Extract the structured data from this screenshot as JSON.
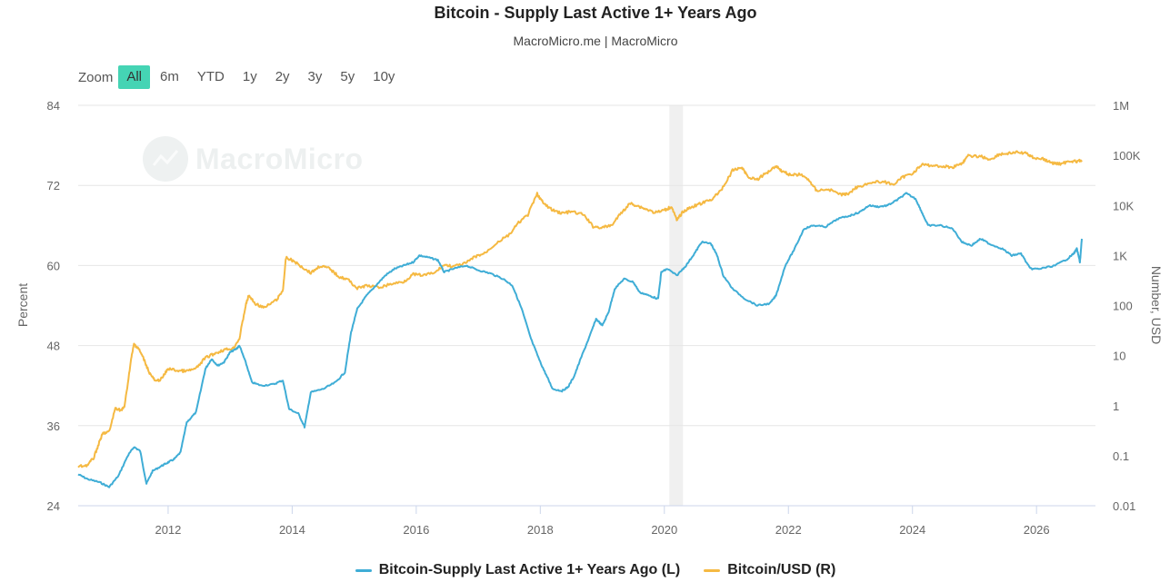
{
  "header": {
    "title": "Bitcoin - Supply Last Active 1+ Years Ago",
    "subtitle": "MacroMicro.me | MacroMicro"
  },
  "zoom": {
    "label": "Zoom",
    "buttons": [
      "All",
      "6m",
      "YTD",
      "1y",
      "2y",
      "3y",
      "5y",
      "10y"
    ],
    "active": "All"
  },
  "watermark": {
    "text": "MacroMicro"
  },
  "colors": {
    "supply": "#3fadd6",
    "price": "#f5b942",
    "shade": "#f0f0f0",
    "grid": "#e6e6e6"
  },
  "chart_data": {
    "type": "line",
    "title": "Bitcoin - Supply Last Active 1+ Years Ago",
    "subtitle": "MacroMicro.me | MacroMicro",
    "ylabel_left": "Percent",
    "ylabel_right": "Number, USD",
    "x_range": [
      2010.55,
      2026.95
    ],
    "x_ticks": [
      "2012",
      "2014",
      "2016",
      "2018",
      "2020",
      "2022",
      "2024",
      "2026"
    ],
    "y_left": {
      "range": [
        24,
        84
      ],
      "ticks": [
        "24",
        "36",
        "48",
        "60",
        "72",
        "84"
      ]
    },
    "y_right": {
      "scale": "log",
      "range": [
        0.01,
        1000000
      ],
      "ticks": [
        "0.01",
        "0.1",
        "1",
        "10",
        "100",
        "1K",
        "10K",
        "100K",
        "1M"
      ]
    },
    "shaded_ranges": [
      [
        2020.08,
        2020.3
      ]
    ],
    "grid": true,
    "legend_position": "bottom-center",
    "series": [
      {
        "name": "Bitcoin-Supply Last Active 1+ Years Ago (L)",
        "axis": "left",
        "points": [
          [
            2010.55,
            28.7
          ],
          [
            2010.7,
            28.0
          ],
          [
            2010.9,
            27.5
          ],
          [
            2011.05,
            26.8
          ],
          [
            2011.2,
            28.5
          ],
          [
            2011.35,
            31.5
          ],
          [
            2011.45,
            32.8
          ],
          [
            2011.55,
            32.2
          ],
          [
            2011.65,
            27.3
          ],
          [
            2011.75,
            29.2
          ],
          [
            2011.9,
            30.0
          ],
          [
            2012.0,
            30.5
          ],
          [
            2012.1,
            31.0
          ],
          [
            2012.2,
            32.0
          ],
          [
            2012.3,
            36.5
          ],
          [
            2012.45,
            38.0
          ],
          [
            2012.6,
            44.5
          ],
          [
            2012.7,
            46.0
          ],
          [
            2012.8,
            45.0
          ],
          [
            2012.9,
            45.5
          ],
          [
            2013.0,
            47.0
          ],
          [
            2013.1,
            47.5
          ],
          [
            2013.15,
            48.0
          ],
          [
            2013.25,
            45.5
          ],
          [
            2013.35,
            42.5
          ],
          [
            2013.5,
            42.0
          ],
          [
            2013.7,
            42.2
          ],
          [
            2013.85,
            42.8
          ],
          [
            2013.95,
            38.5
          ],
          [
            2014.1,
            37.8
          ],
          [
            2014.2,
            35.8
          ],
          [
            2014.3,
            41.0
          ],
          [
            2014.5,
            41.5
          ],
          [
            2014.7,
            42.5
          ],
          [
            2014.85,
            44.0
          ],
          [
            2014.95,
            50.0
          ],
          [
            2015.05,
            53.5
          ],
          [
            2015.2,
            55.5
          ],
          [
            2015.35,
            57.0
          ],
          [
            2015.5,
            58.5
          ],
          [
            2015.65,
            59.5
          ],
          [
            2015.8,
            60.0
          ],
          [
            2015.95,
            60.5
          ],
          [
            2016.05,
            61.5
          ],
          [
            2016.2,
            61.2
          ],
          [
            2016.35,
            60.8
          ],
          [
            2016.45,
            59.0
          ],
          [
            2016.6,
            59.5
          ],
          [
            2016.8,
            60.0
          ],
          [
            2017.0,
            59.3
          ],
          [
            2017.2,
            58.8
          ],
          [
            2017.4,
            58.0
          ],
          [
            2017.55,
            57.0
          ],
          [
            2017.7,
            53.5
          ],
          [
            2017.85,
            49.0
          ],
          [
            2018.0,
            45.5
          ],
          [
            2018.1,
            43.5
          ],
          [
            2018.2,
            41.5
          ],
          [
            2018.35,
            41.2
          ],
          [
            2018.45,
            41.8
          ],
          [
            2018.55,
            43.5
          ],
          [
            2018.65,
            46.0
          ],
          [
            2018.8,
            49.5
          ],
          [
            2018.9,
            52.0
          ],
          [
            2019.0,
            51.0
          ],
          [
            2019.1,
            53.0
          ],
          [
            2019.2,
            56.5
          ],
          [
            2019.35,
            58.0
          ],
          [
            2019.5,
            57.5
          ],
          [
            2019.6,
            56.0
          ],
          [
            2019.75,
            55.5
          ],
          [
            2019.9,
            55.0
          ],
          [
            2019.95,
            59.0
          ],
          [
            2020.05,
            59.5
          ],
          [
            2020.2,
            58.5
          ],
          [
            2020.35,
            60.0
          ],
          [
            2020.5,
            62.0
          ],
          [
            2020.6,
            63.5
          ],
          [
            2020.75,
            63.3
          ],
          [
            2020.85,
            61.5
          ],
          [
            2020.95,
            58.5
          ],
          [
            2021.1,
            56.5
          ],
          [
            2021.3,
            55.0
          ],
          [
            2021.5,
            54.0
          ],
          [
            2021.7,
            54.3
          ],
          [
            2021.8,
            55.5
          ],
          [
            2021.95,
            60.0
          ],
          [
            2022.1,
            62.5
          ],
          [
            2022.25,
            65.5
          ],
          [
            2022.4,
            66.0
          ],
          [
            2022.6,
            65.8
          ],
          [
            2022.8,
            67.0
          ],
          [
            2023.0,
            67.5
          ],
          [
            2023.15,
            68.0
          ],
          [
            2023.3,
            69.0
          ],
          [
            2023.45,
            68.8
          ],
          [
            2023.6,
            69.0
          ],
          [
            2023.75,
            69.8
          ],
          [
            2023.9,
            70.8
          ],
          [
            2024.05,
            70.0
          ],
          [
            2024.15,
            68.0
          ],
          [
            2024.25,
            66.0
          ],
          [
            2024.45,
            66.0
          ],
          [
            2024.65,
            65.5
          ],
          [
            2024.8,
            63.5
          ],
          [
            2024.95,
            63.0
          ],
          [
            2025.1,
            64.0
          ],
          [
            2025.25,
            63.2
          ],
          [
            2025.45,
            62.5
          ],
          [
            2025.6,
            61.5
          ],
          [
            2025.75,
            61.8
          ],
          [
            2025.9,
            59.5
          ],
          [
            2026.05,
            59.5
          ],
          [
            2026.3,
            60.0
          ],
          [
            2026.5,
            61.0
          ],
          [
            2026.6,
            61.8
          ],
          [
            2026.65,
            62.5
          ],
          [
            2026.7,
            60.5
          ],
          [
            2026.73,
            64.0
          ]
        ]
      },
      {
        "name": "Bitcoin/USD (R)",
        "axis": "right",
        "points": [
          [
            2010.55,
            0.06
          ],
          [
            2010.7,
            0.065
          ],
          [
            2010.8,
            0.09
          ],
          [
            2010.9,
            0.2
          ],
          [
            2010.95,
            0.28
          ],
          [
            2011.05,
            0.3
          ],
          [
            2011.15,
            0.9
          ],
          [
            2011.25,
            0.8
          ],
          [
            2011.3,
            1.0
          ],
          [
            2011.4,
            8.0
          ],
          [
            2011.45,
            17.0
          ],
          [
            2011.52,
            14.0
          ],
          [
            2011.6,
            9.0
          ],
          [
            2011.7,
            4.5
          ],
          [
            2011.8,
            3.0
          ],
          [
            2011.9,
            3.5
          ],
          [
            2012.0,
            5.5
          ],
          [
            2012.15,
            5.0
          ],
          [
            2012.3,
            4.9
          ],
          [
            2012.45,
            5.5
          ],
          [
            2012.6,
            9.0
          ],
          [
            2012.75,
            11.0
          ],
          [
            2012.9,
            13.0
          ],
          [
            2013.05,
            14.0
          ],
          [
            2013.15,
            22.0
          ],
          [
            2013.25,
            100.0
          ],
          [
            2013.3,
            160.0
          ],
          [
            2013.4,
            110.0
          ],
          [
            2013.55,
            90.0
          ],
          [
            2013.75,
            130.0
          ],
          [
            2013.85,
            200.0
          ],
          [
            2013.9,
            900.0
          ],
          [
            2014.0,
            800.0
          ],
          [
            2014.15,
            600.0
          ],
          [
            2014.3,
            450.0
          ],
          [
            2014.45,
            620.0
          ],
          [
            2014.6,
            550.0
          ],
          [
            2014.75,
            380.0
          ],
          [
            2014.9,
            330.0
          ],
          [
            2015.05,
            220.0
          ],
          [
            2015.2,
            250.0
          ],
          [
            2015.4,
            230.0
          ],
          [
            2015.6,
            270.0
          ],
          [
            2015.8,
            300.0
          ],
          [
            2015.95,
            420.0
          ],
          [
            2016.1,
            400.0
          ],
          [
            2016.3,
            450.0
          ],
          [
            2016.45,
            650.0
          ],
          [
            2016.6,
            600.0
          ],
          [
            2016.8,
            700.0
          ],
          [
            2016.95,
            950.0
          ],
          [
            2017.1,
            1100.0
          ],
          [
            2017.3,
            1800.0
          ],
          [
            2017.5,
            2600.0
          ],
          [
            2017.65,
            4500.0
          ],
          [
            2017.8,
            6500.0
          ],
          [
            2017.95,
            17000.0
          ],
          [
            2018.05,
            11000.0
          ],
          [
            2018.2,
            8000.0
          ],
          [
            2018.35,
            7000.0
          ],
          [
            2018.5,
            7500.0
          ],
          [
            2018.7,
            6500.0
          ],
          [
            2018.85,
            3800.0
          ],
          [
            2019.0,
            3600.0
          ],
          [
            2019.15,
            4000.0
          ],
          [
            2019.3,
            7000.0
          ],
          [
            2019.45,
            11000.0
          ],
          [
            2019.55,
            10000.0
          ],
          [
            2019.7,
            8500.0
          ],
          [
            2019.85,
            7200.0
          ],
          [
            2020.0,
            8000.0
          ],
          [
            2020.12,
            9500.0
          ],
          [
            2020.2,
            5000.0
          ],
          [
            2020.3,
            7500.0
          ],
          [
            2020.45,
            9500.0
          ],
          [
            2020.6,
            11000.0
          ],
          [
            2020.75,
            13000.0
          ],
          [
            2020.9,
            19000.0
          ],
          [
            2021.0,
            30000.0
          ],
          [
            2021.1,
            50000.0
          ],
          [
            2021.25,
            58000.0
          ],
          [
            2021.35,
            37000.0
          ],
          [
            2021.5,
            33000.0
          ],
          [
            2021.65,
            45000.0
          ],
          [
            2021.8,
            62000.0
          ],
          [
            2021.9,
            48000.0
          ],
          [
            2022.05,
            40000.0
          ],
          [
            2022.2,
            42000.0
          ],
          [
            2022.35,
            30000.0
          ],
          [
            2022.45,
            20000.0
          ],
          [
            2022.65,
            21000.0
          ],
          [
            2022.85,
            16500.0
          ],
          [
            2022.95,
            16800.0
          ],
          [
            2023.1,
            23000.0
          ],
          [
            2023.3,
            28000.0
          ],
          [
            2023.5,
            30000.0
          ],
          [
            2023.7,
            26500.0
          ],
          [
            2023.85,
            37000.0
          ],
          [
            2024.0,
            44000.0
          ],
          [
            2024.15,
            65000.0
          ],
          [
            2024.3,
            63000.0
          ],
          [
            2024.5,
            60000.0
          ],
          [
            2024.65,
            58000.0
          ],
          [
            2024.8,
            70000.0
          ],
          [
            2024.9,
            97000.0
          ],
          [
            2025.1,
            96000.0
          ],
          [
            2025.25,
            82000.0
          ],
          [
            2025.4,
            105000.0
          ],
          [
            2025.55,
            110000.0
          ],
          [
            2025.7,
            115000.0
          ],
          [
            2025.85,
            108000.0
          ],
          [
            2025.95,
            90000.0
          ],
          [
            2026.1,
            85000.0
          ],
          [
            2026.25,
            70000.0
          ],
          [
            2026.4,
            68000.0
          ],
          [
            2026.55,
            78000.0
          ],
          [
            2026.65,
            75000.0
          ],
          [
            2026.73,
            80000.0
          ]
        ]
      }
    ]
  }
}
